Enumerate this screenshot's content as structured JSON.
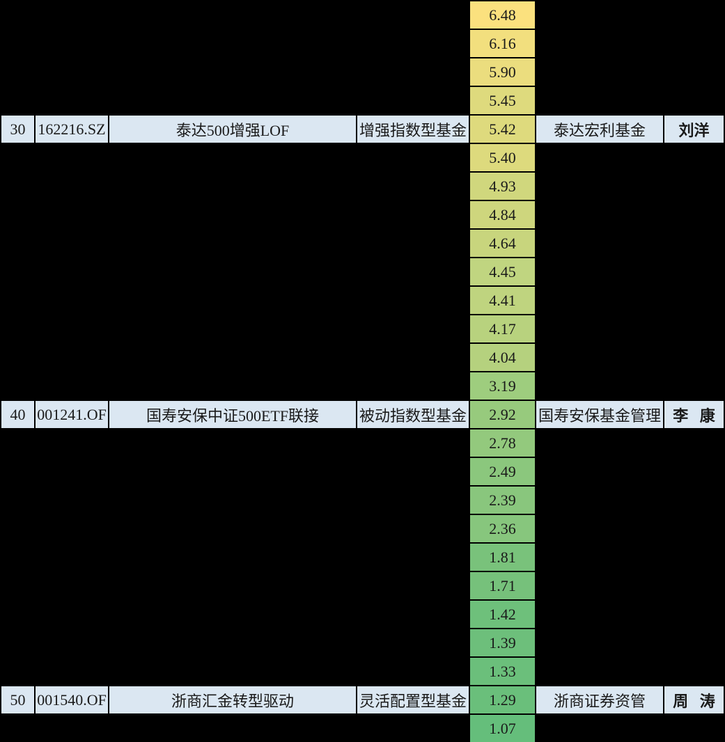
{
  "colors": {
    "canvas_bg": "#000000",
    "highlight_row_bg": "#DBE7F2",
    "grid_border": "#000000",
    "cell_text": "#1A1A1A",
    "scale_top_yellow": "#FBE17E",
    "scale_bottom_green": "#65BE7B"
  },
  "table": {
    "value_column": [
      {
        "value": "6.48",
        "color": "#FBE17E"
      },
      {
        "value": "6.16",
        "color": "#F2DF7E"
      },
      {
        "value": "5.90",
        "color": "#EBDD7E"
      },
      {
        "value": "5.45",
        "color": "#DEDA7D"
      },
      {
        "value": "5.42",
        "color": "#DEDA7D"
      },
      {
        "value": "5.40",
        "color": "#DDDA7D"
      },
      {
        "value": "4.93",
        "color": "#D0D77D"
      },
      {
        "value": "4.84",
        "color": "#CED67D"
      },
      {
        "value": "4.64",
        "color": "#C8D57D"
      },
      {
        "value": "4.45",
        "color": "#C0D580"
      },
      {
        "value": "4.41",
        "color": "#BFD47F"
      },
      {
        "value": "4.17",
        "color": "#B8D27E"
      },
      {
        "value": "4.04",
        "color": "#B5D17E"
      },
      {
        "value": "3.19",
        "color": "#9ECD7E"
      },
      {
        "value": "2.92",
        "color": "#97CA7D"
      },
      {
        "value": "2.78",
        "color": "#93C97D"
      },
      {
        "value": "2.49",
        "color": "#8BC77D"
      },
      {
        "value": "2.39",
        "color": "#89C67D"
      },
      {
        "value": "2.36",
        "color": "#87C67D"
      },
      {
        "value": "1.81",
        "color": "#79C27B"
      },
      {
        "value": "1.71",
        "color": "#76C17B"
      },
      {
        "value": "1.42",
        "color": "#6EC07B"
      },
      {
        "value": "1.39",
        "color": "#6DBF7B"
      },
      {
        "value": "1.33",
        "color": "#6BBF7B"
      },
      {
        "value": "1.29",
        "color": "#6ABF7B"
      },
      {
        "value": "1.07",
        "color": "#65BE7B"
      }
    ],
    "highlighted_rows": [
      {
        "row_index": 4,
        "rank": "30",
        "code": "162216.SZ",
        "name": "泰达500增强LOF",
        "type": "增强指数型基金",
        "value": "5.42",
        "company": "泰达宏利基金",
        "manager": "刘洋"
      },
      {
        "row_index": 14,
        "rank": "40",
        "code": "001241.OF",
        "name": "国寿安保中证500ETF联接",
        "type": "被动指数型基金",
        "value": "2.92",
        "company": "国寿安保基金管理",
        "manager": "李   康"
      },
      {
        "row_index": 24,
        "rank": "50",
        "code": "001540.OF",
        "name": "浙商汇金转型驱动",
        "type": "灵活配置型基金",
        "value": "1.29",
        "company": "浙商证券资管",
        "manager": "周   涛"
      }
    ]
  }
}
